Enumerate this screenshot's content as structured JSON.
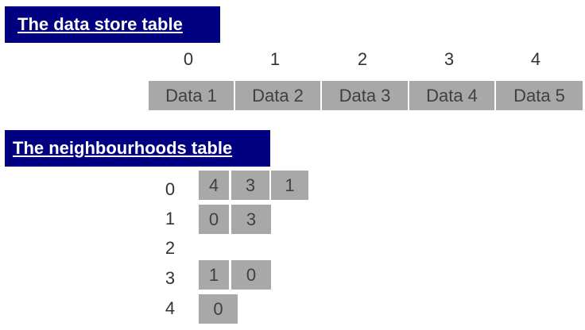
{
  "store": {
    "title": "The data store table",
    "indices": [
      "0",
      "1",
      "2",
      "3",
      "4"
    ],
    "cells": [
      "Data 1",
      "Data 2",
      "Data 3",
      "Data 4",
      "Data 5"
    ]
  },
  "neighbourhoods": {
    "title": "The neighbourhoods table",
    "row_labels": [
      "0",
      "1",
      "2",
      "3",
      "4"
    ],
    "rows": [
      [
        "4",
        "3",
        "1"
      ],
      [
        "0",
        "3"
      ],
      [],
      [
        "1",
        "0"
      ],
      [
        "0"
      ]
    ]
  }
}
